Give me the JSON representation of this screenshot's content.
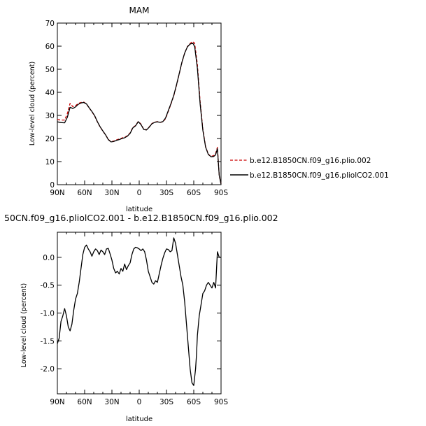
{
  "chart_data": [
    {
      "type": "line",
      "title": "MAM",
      "xlabel": "latitude",
      "ylabel": "Low-level cloud (percent)",
      "x_direction": "90N (left) to 90S (right)",
      "xlim": [
        90,
        -90
      ],
      "ylim": [
        0,
        70
      ],
      "x_ticks": [
        {
          "value": 90,
          "label": "90N"
        },
        {
          "value": 60,
          "label": "60N"
        },
        {
          "value": 30,
          "label": "30N"
        },
        {
          "value": 0,
          "label": "0"
        },
        {
          "value": -30,
          "label": "30S"
        },
        {
          "value": -60,
          "label": "60S"
        },
        {
          "value": -90,
          "label": "90S"
        }
      ],
      "y_ticks": [
        0,
        10,
        20,
        30,
        40,
        50,
        60,
        70
      ],
      "grid": false,
      "legend_position": "right-bottom outside plot",
      "series": [
        {
          "name": "b.e12.B1850CN.f09_g16.plio.002",
          "color": "#cc0000",
          "style": "dashed",
          "x": [
            90,
            86,
            82,
            79,
            76,
            73,
            70,
            67,
            64,
            61,
            58,
            55,
            52,
            49,
            46,
            43,
            40,
            37,
            34,
            31,
            28,
            25,
            22,
            19,
            16,
            13,
            10,
            7,
            4,
            1,
            -2,
            -5,
            -8,
            -11,
            -14,
            -17,
            -20,
            -23,
            -26,
            -29,
            -32,
            -35,
            -38,
            -41,
            -44,
            -47,
            -50,
            -53,
            -56,
            -59,
            -61,
            -64,
            -67,
            -70,
            -73,
            -76,
            -79,
            -82,
            -84,
            -86,
            -88,
            -90
          ],
          "y": [
            28.2,
            28.0,
            28.0,
            30.8,
            35.2,
            33.8,
            34.2,
            35.2,
            35.6,
            35.8,
            35.0,
            33.2,
            31.6,
            29.8,
            27.2,
            25.0,
            23.2,
            21.6,
            19.6,
            18.6,
            18.9,
            19.4,
            19.8,
            20.2,
            20.5,
            21.2,
            22.4,
            24.8,
            25.6,
            27.4,
            26.2,
            24.0,
            23.8,
            25.0,
            26.5,
            27.1,
            27.3,
            27.0,
            27.2,
            28.6,
            31.8,
            35.0,
            38.5,
            43.0,
            48.0,
            53.0,
            57.0,
            59.8,
            61.2,
            62.0,
            61.2,
            52.0,
            36.0,
            24.0,
            16.5,
            13.2,
            12.2,
            12.6,
            13.5,
            16.2,
            4.0,
            0.3
          ]
        },
        {
          "name": "b.e12.B1850CN.f09_g16.pliolCO2.001",
          "color": "#000000",
          "style": "solid",
          "x": [
            90,
            86,
            82,
            79,
            76,
            73,
            70,
            67,
            64,
            61,
            58,
            55,
            52,
            49,
            46,
            43,
            40,
            37,
            34,
            31,
            28,
            25,
            22,
            19,
            16,
            13,
            10,
            7,
            4,
            1,
            -2,
            -5,
            -8,
            -11,
            -14,
            -17,
            -20,
            -23,
            -26,
            -29,
            -32,
            -35,
            -38,
            -41,
            -44,
            -47,
            -50,
            -53,
            -56,
            -59,
            -61,
            -64,
            -67,
            -70,
            -73,
            -76,
            -79,
            -82,
            -84,
            -86,
            -88,
            -90
          ],
          "y": [
            27.2,
            26.9,
            26.8,
            29.2,
            33.5,
            33.0,
            33.7,
            34.8,
            35.4,
            35.6,
            35.0,
            33.3,
            31.7,
            29.9,
            27.3,
            25.1,
            23.3,
            21.6,
            19.5,
            18.5,
            18.7,
            19.2,
            19.5,
            20.0,
            20.3,
            21.0,
            22.2,
            24.6,
            25.5,
            27.3,
            26.0,
            23.9,
            23.7,
            24.9,
            26.4,
            27.0,
            27.2,
            27.0,
            27.3,
            28.9,
            32.1,
            35.2,
            38.7,
            43.2,
            48.1,
            53.1,
            57.0,
            59.7,
            60.9,
            61.3,
            59.8,
            50.4,
            35.0,
            23.6,
            16.3,
            13.1,
            12.1,
            12.2,
            12.9,
            15.6,
            4.0,
            0.2
          ]
        }
      ]
    },
    {
      "type": "line",
      "title": "50CN.f09_g16.pliolCO2.001 - b.e12.B1850CN.f09_g16.plio.002",
      "xlabel": "latitude",
      "ylabel": "Low-level cloud (percent)",
      "x_direction": "90N (left) to 90S (right)",
      "xlim": [
        90,
        -90
      ],
      "ylim": [
        -2.45,
        0.45
      ],
      "x_ticks": [
        {
          "value": 90,
          "label": "90N"
        },
        {
          "value": 60,
          "label": "60N"
        },
        {
          "value": 30,
          "label": "30N"
        },
        {
          "value": 0,
          "label": "0"
        },
        {
          "value": -30,
          "label": "30S"
        },
        {
          "value": -60,
          "label": "60S"
        },
        {
          "value": -90,
          "label": "90S"
        }
      ],
      "y_ticks": [
        {
          "value": 0.0,
          "label": "0.0"
        },
        {
          "value": -0.5,
          "label": "-0.5"
        },
        {
          "value": -1.0,
          "label": "-1.0"
        },
        {
          "value": -1.5,
          "label": "-1.5"
        },
        {
          "value": -2.0,
          "label": "-2.0"
        }
      ],
      "grid": false,
      "series": [
        {
          "color": "#000000",
          "style": "solid",
          "x": [
            90,
            88,
            86,
            84,
            82,
            80,
            78,
            76,
            74,
            72,
            70,
            68,
            66,
            64,
            62,
            60,
            58,
            56,
            54,
            52,
            50,
            48,
            46,
            44,
            42,
            40,
            38,
            36,
            34,
            32,
            30,
            28,
            26,
            24,
            22,
            20,
            18,
            16,
            14,
            12,
            10,
            8,
            6,
            4,
            2,
            0,
            -2,
            -4,
            -6,
            -8,
            -10,
            -12,
            -14,
            -16,
            -18,
            -20,
            -22,
            -24,
            -26,
            -28,
            -30,
            -32,
            -34,
            -36,
            -38,
            -40,
            -42,
            -44,
            -46,
            -48,
            -50,
            -52,
            -54,
            -56,
            -58,
            -60,
            -62,
            -63,
            -64,
            -66,
            -68,
            -70,
            -72,
            -74,
            -76,
            -78,
            -80,
            -82,
            -84,
            -86,
            -88,
            -90
          ],
          "y": [
            -1.55,
            -1.45,
            -1.15,
            -1.05,
            -0.92,
            -1.05,
            -1.25,
            -1.32,
            -1.2,
            -0.95,
            -0.75,
            -0.65,
            -0.45,
            -0.2,
            0.05,
            0.18,
            0.22,
            0.15,
            0.1,
            0.02,
            0.1,
            0.15,
            0.12,
            0.05,
            0.13,
            0.1,
            0.05,
            0.15,
            0.16,
            0.06,
            -0.05,
            -0.2,
            -0.28,
            -0.25,
            -0.3,
            -0.2,
            -0.25,
            -0.12,
            -0.22,
            -0.15,
            -0.1,
            0.05,
            0.15,
            0.18,
            0.17,
            0.15,
            0.12,
            0.15,
            0.1,
            -0.05,
            -0.25,
            -0.35,
            -0.45,
            -0.48,
            -0.42,
            -0.45,
            -0.3,
            -0.15,
            -0.02,
            0.08,
            0.15,
            0.14,
            0.1,
            0.12,
            0.35,
            0.25,
            0.05,
            -0.15,
            -0.35,
            -0.5,
            -0.8,
            -1.2,
            -1.6,
            -2.0,
            -2.25,
            -2.3,
            -2.0,
            -1.75,
            -1.4,
            -1.05,
            -0.85,
            -0.65,
            -0.6,
            -0.5,
            -0.45,
            -0.5,
            -0.55,
            -0.45,
            -0.55,
            0.1,
            0.0,
            0.0
          ]
        }
      ]
    }
  ]
}
